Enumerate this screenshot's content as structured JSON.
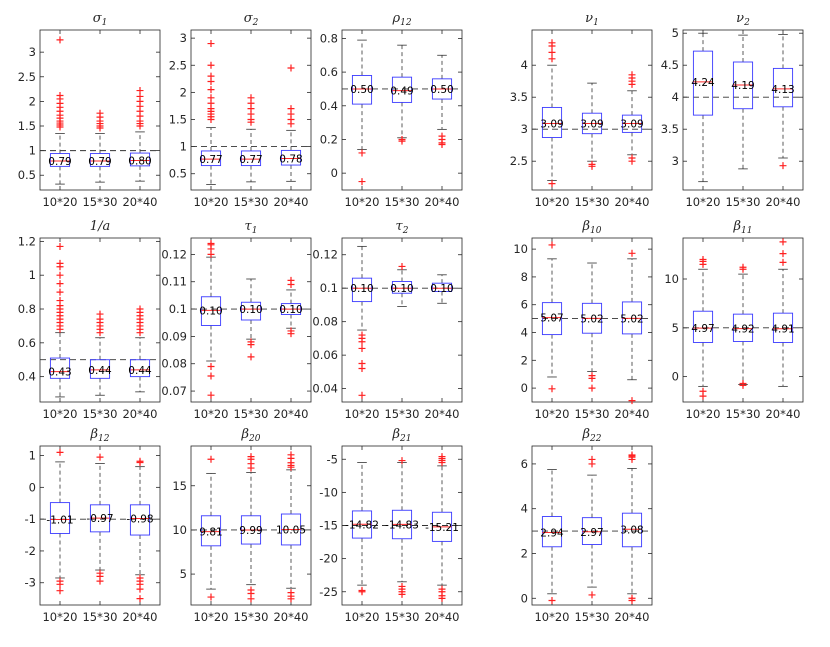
{
  "colors": {
    "box": "#3a3aff",
    "median": "#ff2a2a",
    "outlier": "#ff2020",
    "whisker": "#333333",
    "axis": "#262626"
  },
  "chart_data": [
    {
      "type": "box",
      "title": "σ",
      "title_sub": "1",
      "categories": [
        "10*20",
        "15*30",
        "20*40"
      ],
      "ylim": [
        0.2,
        3.45
      ],
      "yticks": [
        0.5,
        1,
        1.5,
        2,
        2.5,
        3
      ],
      "ytick_labels": [
        "0.5",
        "1",
        "1.5",
        "2",
        "2.5",
        "3"
      ],
      "reference": 1,
      "boxes": [
        {
          "q1": 0.68,
          "median": 0.79,
          "q3": 0.94,
          "wlo": 0.32,
          "whi": 1.35,
          "outliers": [
            1.48,
            1.52,
            1.56,
            1.6,
            1.66,
            1.72,
            1.8,
            1.88,
            1.96,
            2.05,
            2.12,
            3.25
          ],
          "label": "0.79"
        },
        {
          "q1": 0.68,
          "median": 0.79,
          "q3": 0.94,
          "wlo": 0.36,
          "whi": 1.35,
          "outliers": [
            1.46,
            1.5,
            1.55,
            1.6,
            1.68,
            1.76
          ],
          "label": "0.79"
        },
        {
          "q1": 0.69,
          "median": 0.8,
          "q3": 0.95,
          "wlo": 0.38,
          "whi": 1.38,
          "outliers": [
            1.5,
            1.55,
            1.6,
            1.7,
            1.8,
            1.9,
            2.0,
            2.1,
            2.22
          ],
          "label": "0.80"
        }
      ]
    },
    {
      "type": "box",
      "title": "σ",
      "title_sub": "2",
      "categories": [
        "10*20",
        "15*30",
        "20*40"
      ],
      "ylim": [
        0.2,
        3.15
      ],
      "yticks": [
        0.5,
        1,
        1.5,
        2,
        2.5,
        3
      ],
      "ytick_labels": [
        "0.5",
        "1",
        "1.5",
        "2",
        "2.5",
        "3"
      ],
      "reference": 1,
      "boxes": [
        {
          "q1": 0.65,
          "median": 0.77,
          "q3": 0.92,
          "wlo": 0.3,
          "whi": 1.35,
          "outliers": [
            1.5,
            1.55,
            1.6,
            1.65,
            1.7,
            1.8,
            1.9,
            2.05,
            2.2,
            2.3,
            2.5,
            2.9
          ],
          "label": "0.77"
        },
        {
          "q1": 0.65,
          "median": 0.77,
          "q3": 0.92,
          "wlo": 0.35,
          "whi": 1.32,
          "outliers": [
            1.45,
            1.5,
            1.6,
            1.7,
            1.8,
            1.9
          ],
          "label": "0.77"
        },
        {
          "q1": 0.66,
          "median": 0.78,
          "q3": 0.93,
          "wlo": 0.36,
          "whi": 1.3,
          "outliers": [
            1.42,
            1.5,
            1.6,
            1.7,
            2.45
          ],
          "label": "0.78"
        }
      ]
    },
    {
      "type": "box",
      "title": "ρ",
      "title_sub": "12",
      "categories": [
        "10*20",
        "15*30",
        "20*40"
      ],
      "ylim": [
        -0.1,
        0.85
      ],
      "yticks": [
        0,
        0.2,
        0.4,
        0.6,
        0.8
      ],
      "ytick_labels": [
        "0",
        "0.2",
        "0.4",
        "0.6",
        "0.8"
      ],
      "reference": 0.5,
      "boxes": [
        {
          "q1": 0.41,
          "median": 0.5,
          "q3": 0.58,
          "wlo": 0.14,
          "whi": 0.79,
          "outliers": [
            0.12,
            -0.05
          ],
          "label": "0.50"
        },
        {
          "q1": 0.42,
          "median": 0.49,
          "q3": 0.57,
          "wlo": 0.21,
          "whi": 0.76,
          "outliers": [
            0.19,
            0.2
          ],
          "label": "0.49"
        },
        {
          "q1": 0.44,
          "median": 0.5,
          "q3": 0.56,
          "wlo": 0.26,
          "whi": 0.7,
          "outliers": [
            0.17,
            0.18,
            0.2,
            0.22
          ],
          "label": "0.50"
        }
      ]
    },
    {
      "type": "box",
      "title": "ν",
      "title_sub": "1",
      "categories": [
        "10*20",
        "15*30",
        "20*40"
      ],
      "ylim": [
        2.05,
        4.55
      ],
      "yticks": [
        2.5,
        3,
        3.5,
        4
      ],
      "ytick_labels": [
        "2.5",
        "3",
        "3.5",
        "4"
      ],
      "reference": 3,
      "boxes": [
        {
          "q1": 2.87,
          "median": 3.09,
          "q3": 3.34,
          "wlo": 2.2,
          "whi": 4.0,
          "outliers": [
            4.1,
            4.2,
            4.3,
            4.35,
            2.15
          ],
          "label": "3.09"
        },
        {
          "q1": 2.93,
          "median": 3.09,
          "q3": 3.25,
          "wlo": 2.5,
          "whi": 3.72,
          "outliers": [
            2.42,
            2.45
          ],
          "label": "3.09"
        },
        {
          "q1": 2.95,
          "median": 3.09,
          "q3": 3.22,
          "wlo": 2.6,
          "whi": 3.6,
          "outliers": [
            3.7,
            3.75,
            3.8,
            3.85,
            2.5,
            2.55
          ],
          "label": "3.09"
        }
      ]
    },
    {
      "type": "box",
      "title": "ν",
      "title_sub": "2",
      "categories": [
        "10*20",
        "15*30",
        "20*40"
      ],
      "ylim": [
        2.55,
        5.05
      ],
      "yticks": [
        3,
        3.5,
        4,
        4.5,
        5
      ],
      "ytick_labels": [
        "3",
        "3.5",
        "4",
        "4.5",
        "5"
      ],
      "reference": 4,
      "boxes": [
        {
          "q1": 3.72,
          "median": 4.24,
          "q3": 4.72,
          "wlo": 2.68,
          "whi": 5.0,
          "outliers": [],
          "label": "4.24"
        },
        {
          "q1": 3.82,
          "median": 4.19,
          "q3": 4.55,
          "wlo": 2.88,
          "whi": 4.97,
          "outliers": [],
          "label": "4.19"
        },
        {
          "q1": 3.85,
          "median": 4.13,
          "q3": 4.45,
          "wlo": 3.05,
          "whi": 4.98,
          "outliers": [
            2.93
          ],
          "label": "4.13"
        }
      ]
    },
    {
      "type": "box",
      "title": "1/a",
      "title_sub": "",
      "categories": [
        "10*20",
        "15*30",
        "20*40"
      ],
      "ylim": [
        0.25,
        1.22
      ],
      "yticks": [
        0.4,
        0.6,
        0.8,
        1,
        1.2
      ],
      "ytick_labels": [
        "0.4",
        "0.6",
        "0.8",
        "1",
        "1.2"
      ],
      "reference": 0.5,
      "boxes": [
        {
          "q1": 0.39,
          "median": 0.43,
          "q3": 0.51,
          "wlo": 0.28,
          "whi": 0.66,
          "outliers": [
            0.68,
            0.7,
            0.72,
            0.74,
            0.76,
            0.78,
            0.8,
            0.82,
            0.85,
            0.9,
            0.95,
            1.0,
            1.05,
            1.07,
            1.17
          ],
          "label": "0.43"
        },
        {
          "q1": 0.39,
          "median": 0.44,
          "q3": 0.5,
          "wlo": 0.29,
          "whi": 0.63,
          "outliers": [
            0.66,
            0.68,
            0.7,
            0.72,
            0.74,
            0.77
          ],
          "label": "0.44"
        },
        {
          "q1": 0.4,
          "median": 0.44,
          "q3": 0.5,
          "wlo": 0.31,
          "whi": 0.63,
          "outliers": [
            0.66,
            0.68,
            0.7,
            0.72,
            0.74,
            0.76,
            0.78,
            0.8
          ],
          "label": "0.44"
        }
      ]
    },
    {
      "type": "box",
      "title": "τ",
      "title_sub": "1",
      "categories": [
        "10*20",
        "15*30",
        "20*40"
      ],
      "ylim": [
        0.066,
        0.126
      ],
      "yticks": [
        0.07,
        0.08,
        0.09,
        0.1,
        0.11,
        0.12
      ],
      "ytick_labels": [
        "0.07",
        "0.08",
        "0.09",
        "0.1",
        "0.11",
        "0.12"
      ],
      "reference": 0.1,
      "boxes": [
        {
          "q1": 0.094,
          "median": 0.0995,
          "q3": 0.1045,
          "wlo": 0.081,
          "whi": 0.119,
          "outliers": [
            0.12,
            0.122,
            0.1235,
            0.124,
            0.079,
            0.0755,
            0.0685
          ],
          "label": "0.10"
        },
        {
          "q1": 0.096,
          "median": 0.1,
          "q3": 0.1025,
          "wlo": 0.089,
          "whi": 0.111,
          "outliers": [
            0.088,
            0.087,
            0.0825
          ],
          "label": "0.10"
        },
        {
          "q1": 0.098,
          "median": 0.1,
          "q3": 0.102,
          "wlo": 0.093,
          "whi": 0.107,
          "outliers": [
            0.109,
            0.1105,
            0.092,
            0.091
          ],
          "label": "0.10"
        }
      ]
    },
    {
      "type": "box",
      "title": "τ",
      "title_sub": "2",
      "categories": [
        "10*20",
        "15*30",
        "20*40"
      ],
      "ylim": [
        0.032,
        0.13
      ],
      "yticks": [
        0.04,
        0.06,
        0.08,
        0.1,
        0.12
      ],
      "ytick_labels": [
        "0.04",
        "0.06",
        "0.08",
        "0.1",
        "0.12"
      ],
      "reference": 0.1,
      "boxes": [
        {
          "q1": 0.092,
          "median": 0.1,
          "q3": 0.106,
          "wlo": 0.075,
          "whi": 0.125,
          "outliers": [
            0.072,
            0.07,
            0.068,
            0.064,
            0.055,
            0.052,
            0.036
          ],
          "label": "0.10"
        },
        {
          "q1": 0.097,
          "median": 0.1,
          "q3": 0.104,
          "wlo": 0.089,
          "whi": 0.111,
          "outliers": [
            0.113
          ],
          "label": "0.10"
        },
        {
          "q1": 0.098,
          "median": 0.1,
          "q3": 0.103,
          "wlo": 0.091,
          "whi": 0.108,
          "outliers": [],
          "label": "0.10"
        }
      ]
    },
    {
      "type": "box",
      "title": "β",
      "title_sub": "10",
      "categories": [
        "10*20",
        "15*30",
        "20*40"
      ],
      "ylim": [
        -1.0,
        10.8
      ],
      "yticks": [
        0,
        2,
        4,
        6,
        8,
        10
      ],
      "ytick_labels": [
        "0",
        "2",
        "4",
        "6",
        "8",
        "10"
      ],
      "reference": 5,
      "boxes": [
        {
          "q1": 3.85,
          "median": 5.07,
          "q3": 6.15,
          "wlo": 0.8,
          "whi": 9.3,
          "outliers": [
            10.3,
            -0.05
          ],
          "label": "5.07"
        },
        {
          "q1": 3.95,
          "median": 5.02,
          "q3": 6.1,
          "wlo": 1.2,
          "whi": 9.0,
          "outliers": [
            0.9,
            0.7,
            0.0
          ],
          "label": "5.02"
        },
        {
          "q1": 3.9,
          "median": 5.02,
          "q3": 6.2,
          "wlo": 0.6,
          "whi": 9.3,
          "outliers": [
            9.7,
            -0.9
          ],
          "label": "5.02"
        }
      ]
    },
    {
      "type": "box",
      "title": "β",
      "title_sub": "11",
      "categories": [
        "10*20",
        "15*30",
        "20*40"
      ],
      "ylim": [
        -2.6,
        14.2
      ],
      "yticks": [
        0,
        5,
        10
      ],
      "ytick_labels": [
        "0",
        "5",
        "10"
      ],
      "reference": 5,
      "boxes": [
        {
          "q1": 3.5,
          "median": 4.97,
          "q3": 6.7,
          "wlo": -1.0,
          "whi": 11.0,
          "outliers": [
            11.5,
            11.8,
            12.0,
            -1.5,
            -2.0
          ],
          "label": "4.97"
        },
        {
          "q1": 3.6,
          "median": 4.92,
          "q3": 6.4,
          "wlo": -0.8,
          "whi": 10.5,
          "outliers": [
            11.0,
            11.2,
            -0.7,
            -0.9
          ],
          "label": "4.92"
        },
        {
          "q1": 3.5,
          "median": 4.91,
          "q3": 6.5,
          "wlo": -1.0,
          "whi": 11.0,
          "outliers": [
            11.7,
            12.6,
            13.8
          ],
          "label": "4.91"
        }
      ]
    },
    {
      "type": "box",
      "title": "β",
      "title_sub": "12",
      "categories": [
        "10*20",
        "15*30",
        "20*40"
      ],
      "ylim": [
        -3.7,
        1.3
      ],
      "yticks": [
        -3,
        -2,
        -1,
        0,
        1
      ],
      "ytick_labels": [
        "-3",
        "-2",
        "-1",
        "0",
        "1"
      ],
      "reference": -1,
      "boxes": [
        {
          "q1": -1.45,
          "median": -1.01,
          "q3": -0.48,
          "wlo": -2.85,
          "whi": 0.8,
          "outliers": [
            1.1,
            -2.95,
            -3.05,
            -3.25
          ],
          "label": "-1.01"
        },
        {
          "q1": -1.4,
          "median": -0.97,
          "q3": -0.55,
          "wlo": -2.6,
          "whi": 0.75,
          "outliers": [
            0.95,
            -2.7,
            -2.8,
            -2.95
          ],
          "label": "-0.97"
        },
        {
          "q1": -1.5,
          "median": -0.98,
          "q3": -0.55,
          "wlo": -2.75,
          "whi": 0.65,
          "outliers": [
            0.82,
            0.78,
            -2.85,
            -2.95,
            -3.05,
            -3.2,
            -3.5
          ],
          "label": "-0.98"
        }
      ]
    },
    {
      "type": "box",
      "title": "β",
      "title_sub": "20",
      "categories": [
        "10*20",
        "15*30",
        "20*40"
      ],
      "ylim": [
        1.5,
        19.5
      ],
      "yticks": [
        5,
        10,
        15
      ],
      "ytick_labels": [
        "5",
        "10",
        "15"
      ],
      "reference": 10,
      "boxes": [
        {
          "q1": 8.2,
          "median": 9.81,
          "q3": 11.6,
          "wlo": 3.3,
          "whi": 16.4,
          "outliers": [
            18.0,
            2.4
          ],
          "label": "9.81"
        },
        {
          "q1": 8.4,
          "median": 9.99,
          "q3": 11.6,
          "wlo": 3.8,
          "whi": 16.5,
          "outliers": [
            17.0,
            17.5,
            18.0,
            18.3,
            3.2,
            2.8,
            2.2
          ],
          "label": "9.99"
        },
        {
          "q1": 8.3,
          "median": 10.05,
          "q3": 11.8,
          "wlo": 3.4,
          "whi": 16.8,
          "outliers": [
            17.1,
            17.3,
            17.6,
            18.1,
            18.5,
            2.9,
            2.5,
            2.2
          ],
          "label": "10.05"
        }
      ]
    },
    {
      "type": "box",
      "title": "β",
      "title_sub": "21",
      "categories": [
        "10*20",
        "15*30",
        "20*40"
      ],
      "ylim": [
        -27,
        -3
      ],
      "yticks": [
        -25,
        -20,
        -15,
        -10,
        -5
      ],
      "ytick_labels": [
        "-25",
        "-20",
        "-15",
        "-10",
        "-5"
      ],
      "reference": -15,
      "boxes": [
        {
          "q1": -16.9,
          "median": -14.82,
          "q3": -12.8,
          "wlo": -24.0,
          "whi": -5.5,
          "outliers": [
            -24.8,
            -25.0
          ],
          "label": "-14.82"
        },
        {
          "q1": -17.0,
          "median": -14.83,
          "q3": -12.7,
          "wlo": -23.5,
          "whi": -5.5,
          "outliers": [
            -5.2,
            -24.2,
            -24.6,
            -25.0,
            -25.4
          ],
          "label": "-14.83"
        },
        {
          "q1": -17.4,
          "median": -15.21,
          "q3": -13.0,
          "wlo": -24.0,
          "whi": -6.0,
          "outliers": [
            -5.5,
            -5.2,
            -4.9,
            -4.6,
            -24.6,
            -25.0,
            -25.6,
            -26.0
          ],
          "label": "-15.21"
        }
      ]
    },
    {
      "type": "box",
      "title": "β",
      "title_sub": "22",
      "categories": [
        "10*20",
        "15*30",
        "20*40"
      ],
      "ylim": [
        -0.3,
        6.8
      ],
      "yticks": [
        0,
        2,
        4,
        6
      ],
      "ytick_labels": [
        "0",
        "2",
        "4",
        "6"
      ],
      "reference": 3,
      "boxes": [
        {
          "q1": 2.3,
          "median": 2.94,
          "q3": 3.65,
          "wlo": 0.2,
          "whi": 5.75,
          "outliers": [
            -0.1
          ],
          "label": "2.94"
        },
        {
          "q1": 2.4,
          "median": 2.97,
          "q3": 3.6,
          "wlo": 0.5,
          "whi": 5.5,
          "outliers": [
            6.0,
            6.2,
            0.15
          ],
          "label": "2.97"
        },
        {
          "q1": 2.3,
          "median": 3.08,
          "q3": 3.8,
          "wlo": 0.2,
          "whi": 5.8,
          "outliers": [
            6.2,
            6.3,
            6.35,
            6.4,
            0.0,
            -0.1
          ],
          "label": "3.08"
        }
      ]
    }
  ]
}
